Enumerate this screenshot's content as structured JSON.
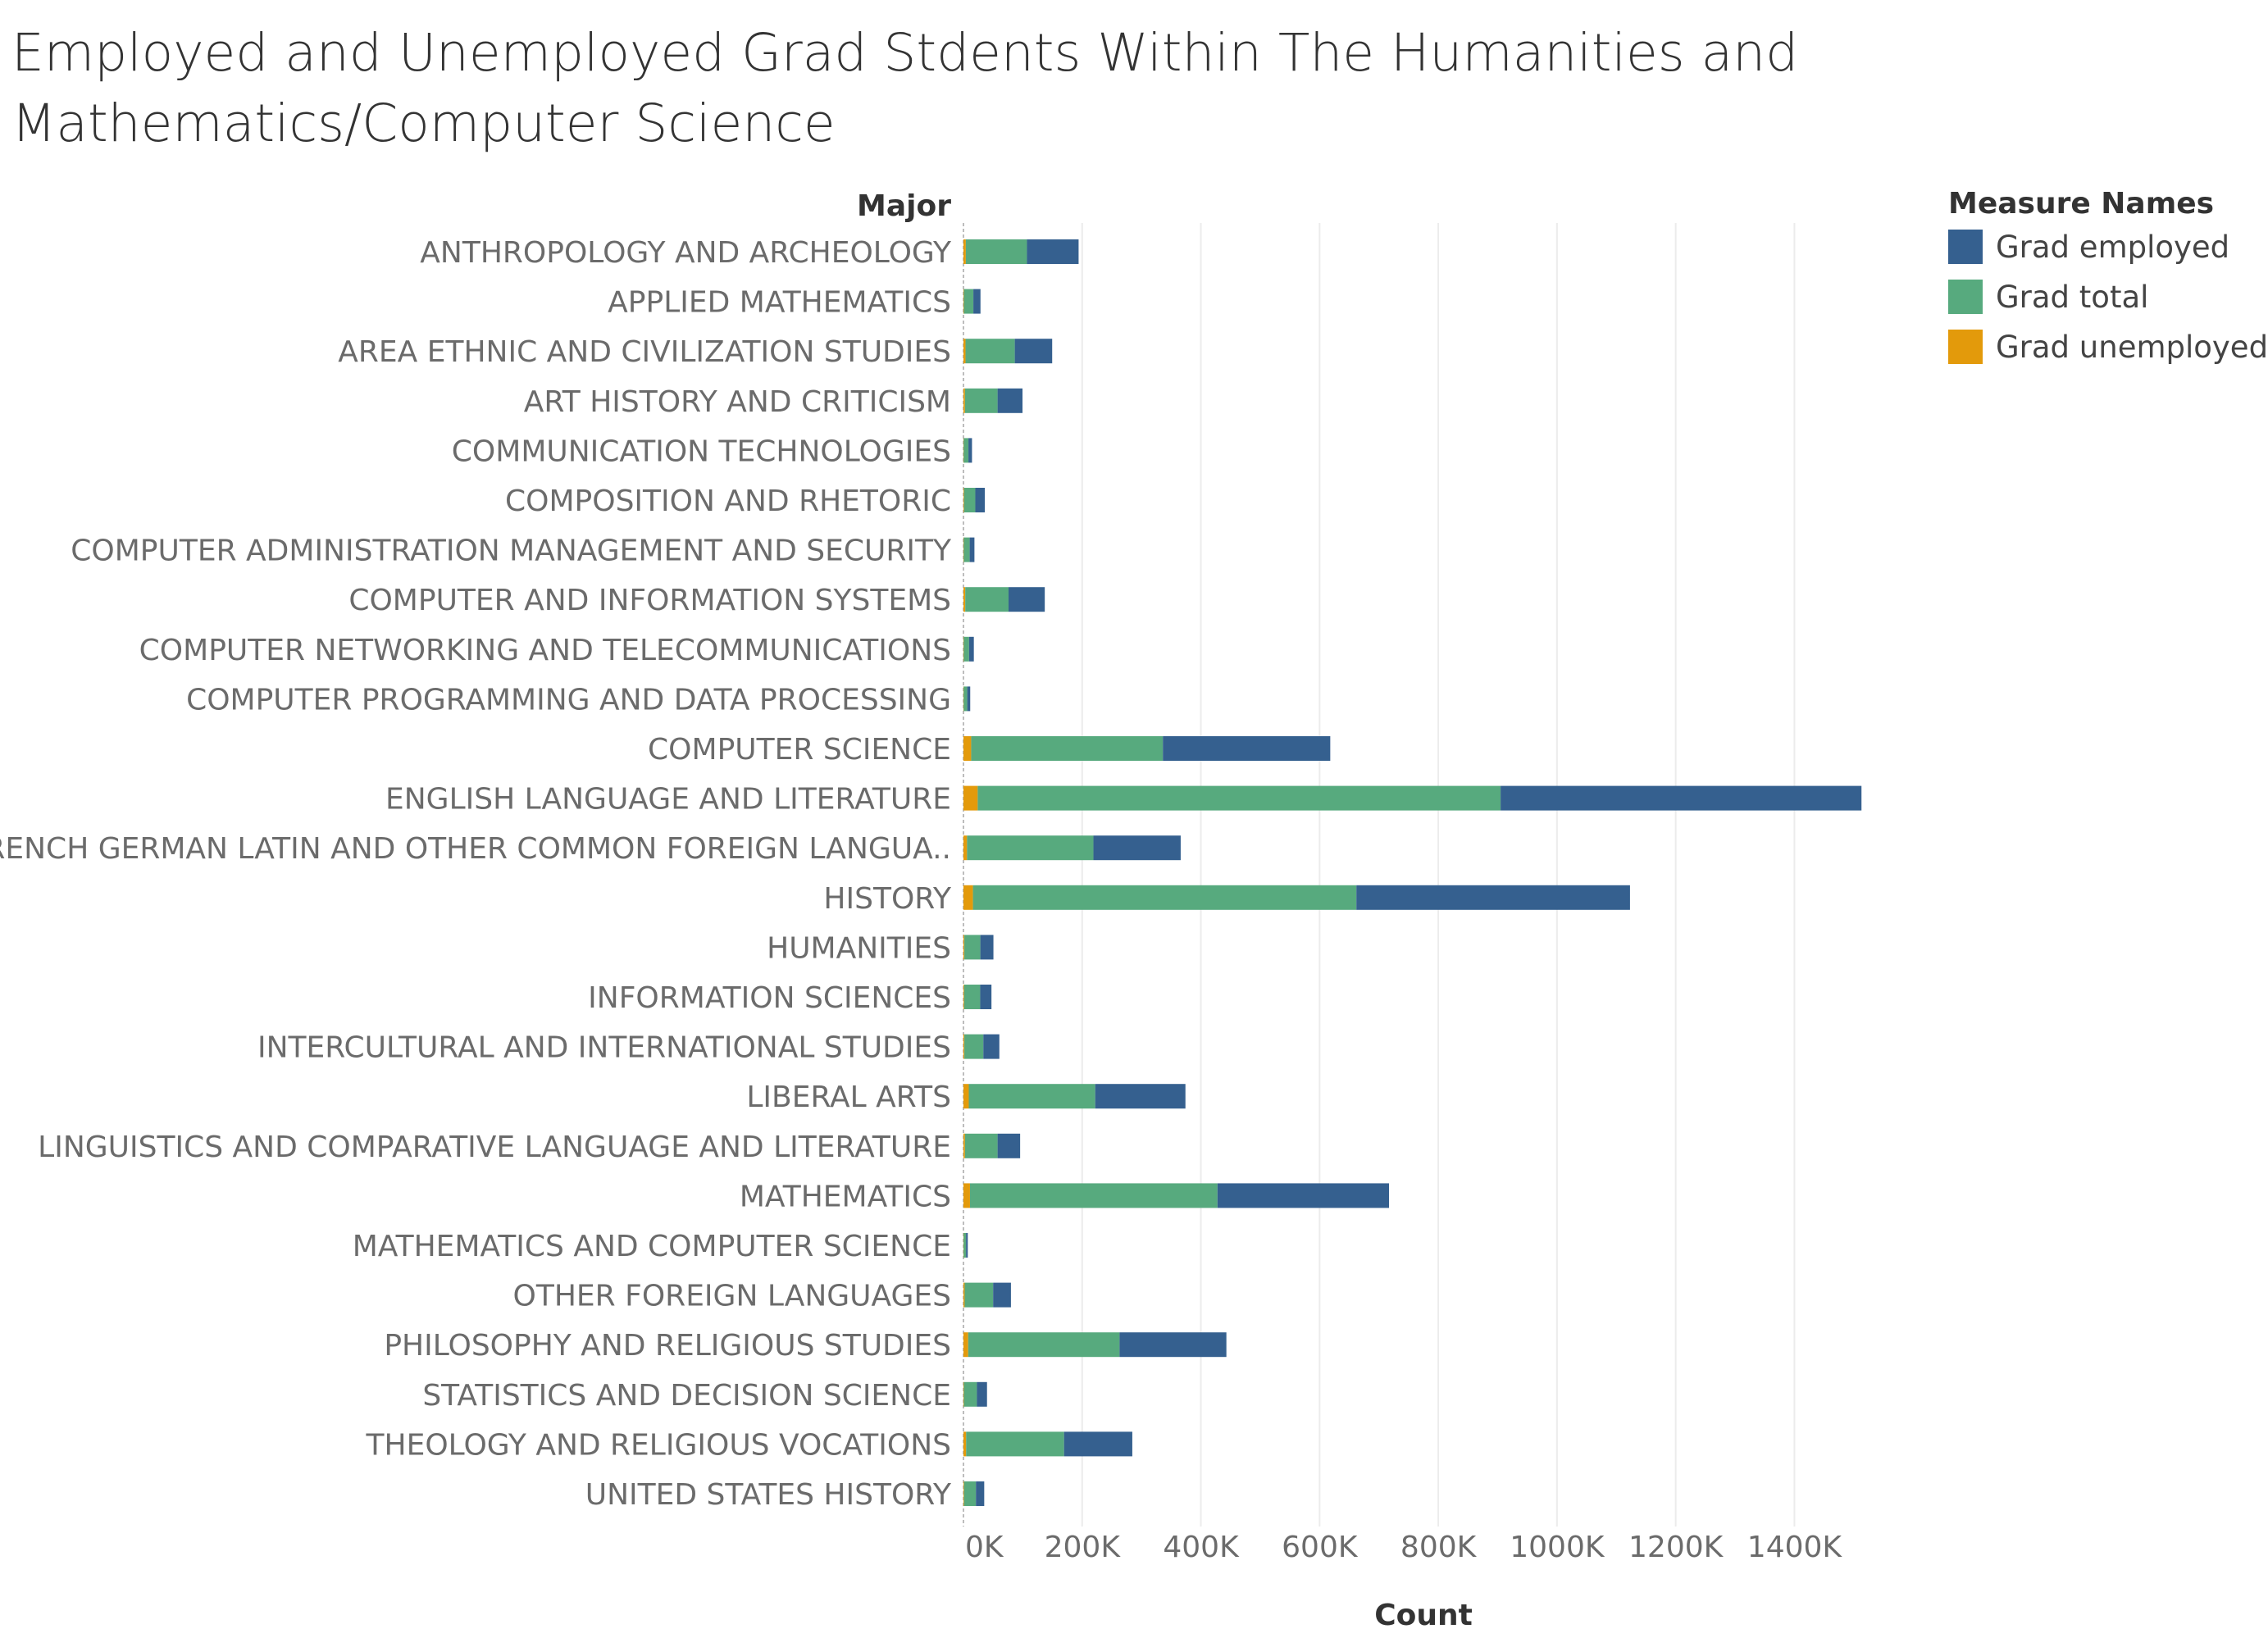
{
  "title_lines": [
    "Employed and Unemployed Grad Stdents Within The Humanities and",
    "Mathematics/Computer Science"
  ],
  "chart_data": {
    "type": "bar",
    "orientation": "horizontal",
    "stacked": true,
    "row_header": "Major",
    "xlabel": "Count",
    "xlim": [
      0,
      1550000
    ],
    "x_ticks": [
      0,
      200000,
      400000,
      600000,
      800000,
      1000000,
      1200000,
      1400000
    ],
    "x_tick_labels": [
      "0K",
      "200K",
      "400K",
      "600K",
      "800K",
      "1000K",
      "1200K",
      "1400K"
    ],
    "grid": "vertical",
    "legend": {
      "title": "Measure Names",
      "placement": "top-right"
    },
    "categories": [
      "ANTHROPOLOGY AND ARCHEOLOGY",
      "APPLIED MATHEMATICS",
      "AREA ETHNIC AND CIVILIZATION STUDIES",
      "ART HISTORY AND CRITICISM",
      "COMMUNICATION TECHNOLOGIES",
      "COMPOSITION AND RHETORIC",
      "COMPUTER ADMINISTRATION MANAGEMENT AND SECURITY",
      "COMPUTER AND INFORMATION SYSTEMS",
      "COMPUTER NETWORKING AND TELECOMMUNICATIONS",
      "COMPUTER PROGRAMMING AND DATA PROCESSING",
      "COMPUTER SCIENCE",
      "ENGLISH LANGUAGE AND LITERATURE",
      "FRENCH GERMAN LATIN AND OTHER COMMON FOREIGN LANGUA..",
      "HISTORY",
      "HUMANITIES",
      "INFORMATION SCIENCES",
      "INTERCULTURAL AND INTERNATIONAL STUDIES",
      "LIBERAL ARTS",
      "LINGUISTICS AND COMPARATIVE LANGUAGE AND LITERATURE",
      "MATHEMATICS",
      "MATHEMATICS AND COMPUTER SCIENCE",
      "OTHER FOREIGN LANGUAGES",
      "PHILOSOPHY AND RELIGIOUS STUDIES",
      "STATISTICS AND DECISION SCIENCE",
      "THEOLOGY AND RELIGIOUS VOCATIONS",
      "UNITED STATES HISTORY"
    ],
    "series": [
      {
        "name": "Grad unemployed",
        "color": "#e39a0b",
        "values": [
          4000,
          700,
          3500,
          2500,
          400,
          1000,
          500,
          3000,
          500,
          400,
          13000,
          24000,
          6000,
          16000,
          1500,
          1200,
          1500,
          9000,
          2500,
          11000,
          300,
          2000,
          8000,
          700,
          4500,
          1000
        ]
      },
      {
        "name": "Grad total",
        "color": "#57aa7e",
        "values": [
          103000,
          16000,
          83000,
          55000,
          8000,
          19000,
          10000,
          73000,
          9000,
          6000,
          323000,
          881000,
          213000,
          646000,
          27000,
          27000,
          32000,
          213000,
          55000,
          417000,
          4000,
          48000,
          255000,
          22000,
          165000,
          20000
        ]
      },
      {
        "name": "Grad employed",
        "color": "#35608f",
        "values": [
          87000,
          12000,
          63000,
          42000,
          6000,
          16000,
          8000,
          61000,
          8000,
          5000,
          282000,
          608000,
          147000,
          461000,
          22000,
          19000,
          27000,
          152000,
          38000,
          289000,
          3000,
          30000,
          180000,
          17000,
          115000,
          14000
        ]
      }
    ]
  }
}
